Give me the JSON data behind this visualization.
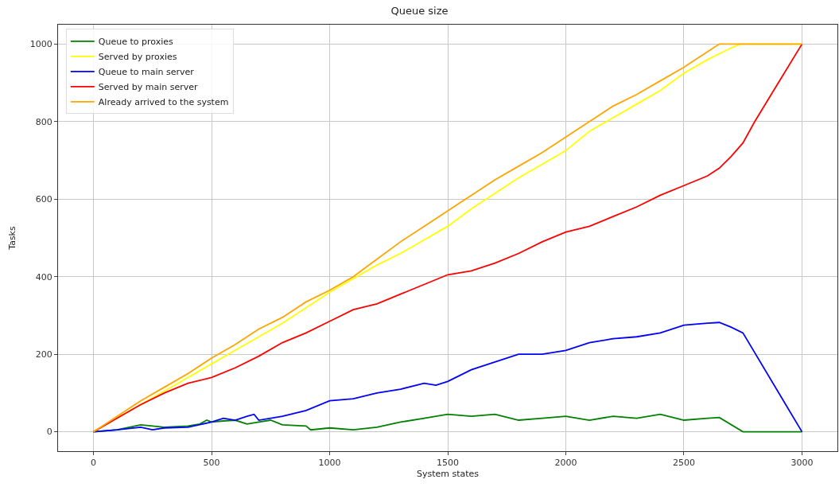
{
  "chart_data": {
    "type": "line",
    "title": "Queue size",
    "xlabel": "System states",
    "ylabel": "Tasks",
    "xlim": [
      -150,
      3150
    ],
    "xticks": [
      0,
      500,
      1000,
      1500,
      2000,
      2500,
      3000
    ],
    "ylim": [
      -50,
      1050
    ],
    "yticks": [
      0,
      200,
      400,
      600,
      800,
      1000
    ],
    "grid": true,
    "legend": "top left",
    "marker": "none",
    "line_style": "solid",
    "series": [
      {
        "name": "Queue to proxies",
        "color": "#008000",
        "x": [
          0,
          100,
          200,
          300,
          400,
          450,
          480,
          500,
          550,
          600,
          650,
          700,
          750,
          800,
          900,
          920,
          1000,
          1100,
          1200,
          1300,
          1400,
          1500,
          1600,
          1700,
          1800,
          1900,
          2000,
          2100,
          2200,
          2300,
          2400,
          2500,
          2600,
          2650,
          2750,
          3000
        ],
        "values": [
          0,
          5,
          18,
          12,
          15,
          20,
          30,
          25,
          28,
          30,
          20,
          25,
          30,
          18,
          15,
          5,
          10,
          5,
          12,
          25,
          35,
          45,
          40,
          45,
          30,
          35,
          40,
          30,
          40,
          35,
          45,
          30,
          35,
          37,
          0,
          0
        ]
      },
      {
        "name": "Served by proxies",
        "color": "#ffff00",
        "x": [
          0,
          100,
          200,
          300,
          400,
          500,
          600,
          700,
          800,
          900,
          1000,
          1100,
          1200,
          1300,
          1400,
          1500,
          1600,
          1700,
          1800,
          1900,
          2000,
          2100,
          2200,
          2300,
          2400,
          2500,
          2600,
          2700,
          2740,
          3000
        ],
        "values": [
          0,
          35,
          70,
          105,
          140,
          175,
          210,
          245,
          280,
          320,
          360,
          395,
          430,
          460,
          495,
          530,
          575,
          615,
          655,
          690,
          725,
          775,
          810,
          845,
          880,
          925,
          960,
          990,
          1000,
          1000
        ]
      },
      {
        "name": "Queue to main server",
        "color": "#0000ff",
        "x": [
          0,
          100,
          200,
          250,
          300,
          400,
          500,
          550,
          600,
          650,
          680,
          700,
          800,
          900,
          1000,
          1100,
          1200,
          1300,
          1400,
          1450,
          1500,
          1600,
          1700,
          1800,
          1900,
          2000,
          2100,
          2200,
          2300,
          2400,
          2500,
          2600,
          2650,
          2700,
          2750,
          3000
        ],
        "values": [
          0,
          5,
          12,
          5,
          10,
          12,
          25,
          35,
          30,
          40,
          45,
          30,
          40,
          55,
          80,
          85,
          100,
          110,
          125,
          120,
          130,
          160,
          180,
          200,
          200,
          210,
          230,
          240,
          245,
          255,
          275,
          280,
          282,
          270,
          255,
          0
        ]
      },
      {
        "name": "Served by main server",
        "color": "#ff0000",
        "x": [
          0,
          100,
          200,
          300,
          400,
          500,
          600,
          700,
          800,
          900,
          1000,
          1100,
          1200,
          1300,
          1400,
          1500,
          1600,
          1700,
          1800,
          1900,
          2000,
          2100,
          2200,
          2300,
          2400,
          2500,
          2600,
          2650,
          2700,
          2750,
          2800,
          2900,
          3000
        ],
        "values": [
          0,
          35,
          70,
          100,
          125,
          140,
          165,
          195,
          230,
          255,
          285,
          315,
          330,
          355,
          380,
          405,
          415,
          435,
          460,
          490,
          515,
          530,
          555,
          580,
          610,
          635,
          660,
          680,
          710,
          745,
          800,
          900,
          1000
        ]
      },
      {
        "name": "Already arrived to the system",
        "color": "#ffa500",
        "x": [
          0,
          100,
          200,
          300,
          400,
          500,
          600,
          700,
          800,
          900,
          1000,
          1100,
          1200,
          1300,
          1400,
          1500,
          1600,
          1700,
          1800,
          1900,
          2000,
          2100,
          2200,
          2300,
          2400,
          2500,
          2600,
          2650,
          3000
        ],
        "values": [
          0,
          40,
          80,
          115,
          150,
          190,
          225,
          265,
          295,
          335,
          365,
          400,
          445,
          490,
          530,
          570,
          610,
          650,
          685,
          720,
          760,
          800,
          840,
          870,
          905,
          940,
          980,
          1000,
          1000
        ]
      }
    ]
  }
}
